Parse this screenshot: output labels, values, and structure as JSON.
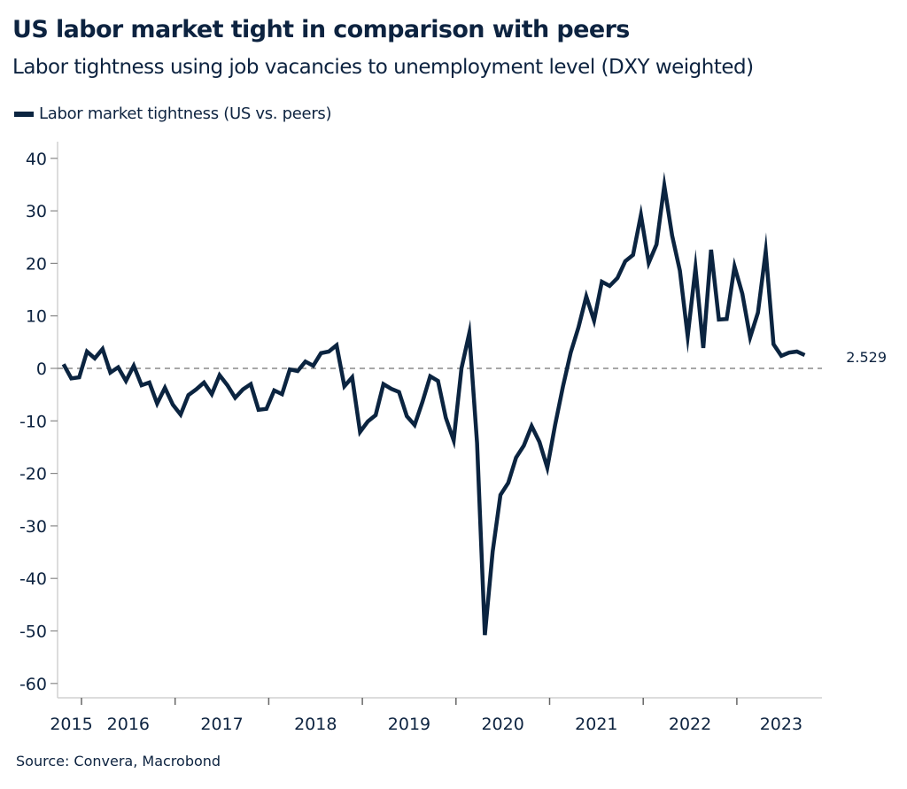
{
  "chart_data": {
    "type": "line",
    "title": "US labor market tight in comparison with peers",
    "subtitle": "Labor tightness using job vacancies to unemployment level (DXY weighted)",
    "source": "Source: Convera, Macrobond",
    "xlabel": "",
    "ylabel": "",
    "ylim": [
      -63,
      43
    ],
    "yticks": [
      40,
      30,
      20,
      10,
      0,
      -10,
      -20,
      -30,
      -40,
      -50,
      -60
    ],
    "ytick_labels": [
      "40",
      "30",
      "20",
      "10",
      "0",
      "-10",
      "-20",
      "-30",
      "-40",
      "-50",
      "-60"
    ],
    "xticks": [
      "2015",
      "2016",
      "2017",
      "2018",
      "2019",
      "2020",
      "2021",
      "2022",
      "2023"
    ],
    "x_start": "2015-10",
    "x_end": "2023-09",
    "frequency": "monthly",
    "reference_line": 0,
    "grid": false,
    "legend_position": "top-left",
    "series": [
      {
        "name": "Labor market tightness (US vs. peers)",
        "color": "#0b2440",
        "last_value_label": "2.529",
        "values": [
          0.8,
          -1.9,
          -1.7,
          3.2,
          1.9,
          3.7,
          -0.8,
          0.2,
          -2.4,
          0.5,
          -3.2,
          -2.7,
          -6.7,
          -3.7,
          -6.9,
          -8.8,
          -5.1,
          -4.0,
          -2.7,
          -4.9,
          -1.3,
          -3.2,
          -5.6,
          -4.0,
          -3.0,
          -7.9,
          -7.7,
          -4.2,
          -4.9,
          -0.2,
          -0.5,
          1.3,
          0.5,
          2.9,
          3.2,
          4.4,
          -3.4,
          -1.7,
          -12.1,
          -10.1,
          -8.9,
          -3.0,
          -3.9,
          -4.5,
          -9.1,
          -10.8,
          -6.4,
          -1.5,
          -2.4,
          -9.4,
          -13.7,
          0.0,
          6.7,
          -14.2,
          -50.8,
          -34.9,
          -24.1,
          -21.8,
          -17.0,
          -14.7,
          -11.0,
          -14.0,
          -18.9,
          -10.8,
          -3.5,
          3.0,
          7.8,
          13.7,
          9.1,
          16.5,
          15.7,
          17.2,
          20.4,
          21.6,
          29.2,
          20.1,
          23.6,
          34.8,
          25.3,
          18.6,
          6.1,
          19.1,
          3.9,
          22.6,
          9.3,
          9.4,
          19.4,
          14.2,
          5.9,
          10.6,
          22.3,
          4.6,
          2.4,
          3.0,
          3.2,
          2.529
        ]
      }
    ]
  }
}
